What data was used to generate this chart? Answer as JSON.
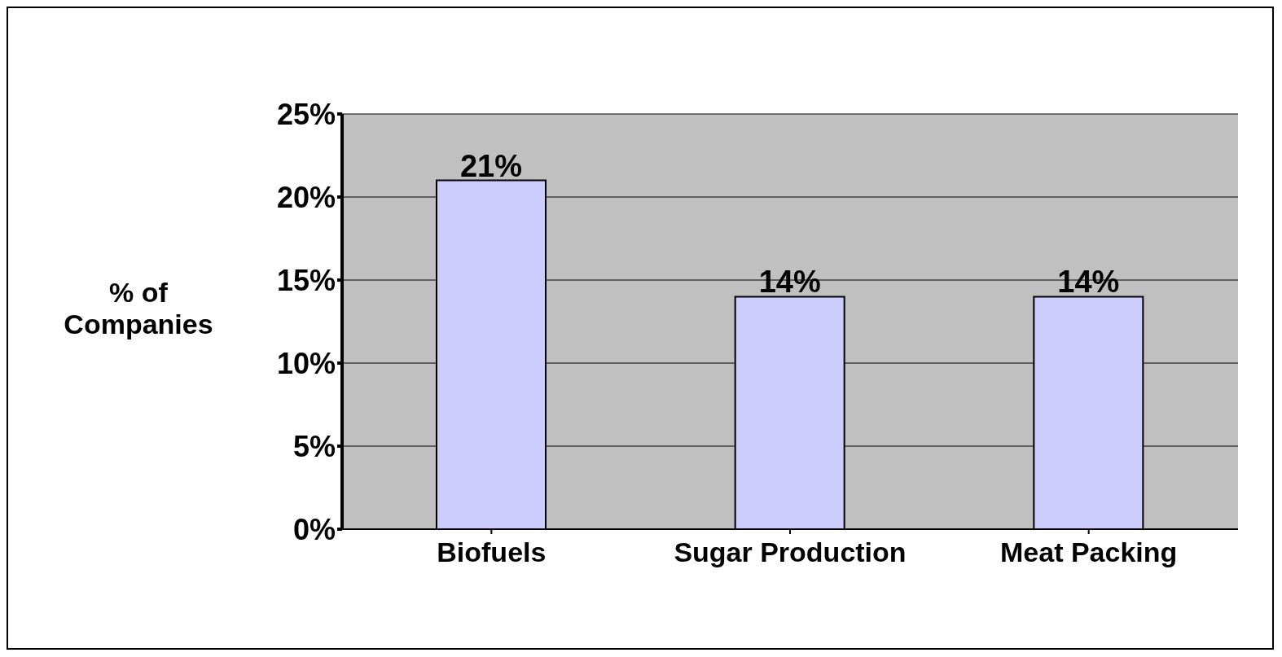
{
  "chart_data": {
    "type": "bar",
    "ylabel": "% of Companies",
    "categories": [
      "Biofuels",
      "Sugar Production",
      "Meat Packing"
    ],
    "values": [
      21,
      14,
      14
    ],
    "color": "#ccccff",
    "value_labels": [
      "21%",
      "14%",
      "14%"
    ],
    "ylim": [
      0,
      25
    ],
    "yticks": [
      {
        "value": 0,
        "label": "0%"
      },
      {
        "value": 5,
        "label": "5%"
      },
      {
        "value": 10,
        "label": "10%"
      },
      {
        "value": 15,
        "label": "15%"
      },
      {
        "value": 20,
        "label": "20%"
      },
      {
        "value": 25,
        "label": "25%"
      }
    ],
    "grid": "y",
    "legend": false
  }
}
